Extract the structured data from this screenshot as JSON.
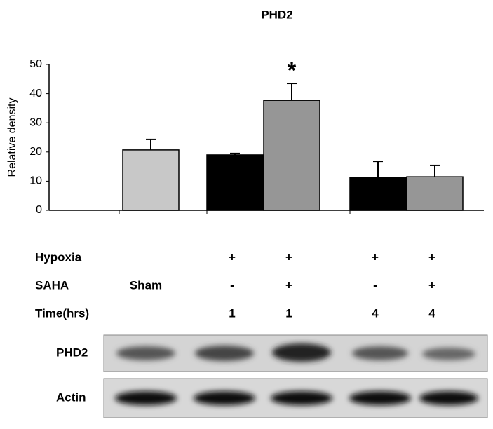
{
  "chart_data": {
    "type": "bar",
    "title": "PHD2",
    "y_label": "Relative density",
    "categories": [
      null,
      null,
      null,
      null,
      null
    ],
    "values": [
      20.7,
      19.0,
      37.7,
      11.3,
      11.5
    ],
    "errors": [
      3.6,
      0.5,
      5.8,
      5.5,
      3.9
    ],
    "colors": [
      "#c8c8c8",
      "#000000",
      "#969696",
      "#000000",
      "#969696"
    ],
    "significance": [
      null,
      null,
      "*",
      null,
      null
    ],
    "ylim": [
      0,
      50
    ],
    "yticks": [
      0,
      10,
      20,
      30,
      40,
      50
    ]
  },
  "conditions": [
    {
      "label": "Hypoxia",
      "cells": [
        null,
        "+",
        "+",
        "+",
        "+"
      ]
    },
    {
      "label": "SAHA",
      "cells": [
        "Sham",
        "-",
        "+",
        "-",
        "+"
      ]
    },
    {
      "label": "Time(hrs)",
      "cells": [
        null,
        "1",
        "1",
        "4",
        "4"
      ]
    }
  ],
  "blots": [
    {
      "label": "PHD2"
    },
    {
      "label": "Actin"
    }
  ]
}
